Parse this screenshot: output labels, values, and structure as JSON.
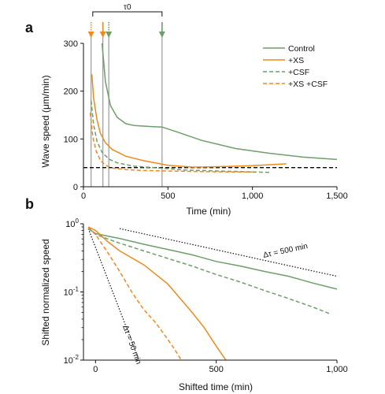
{
  "colors": {
    "control": "#6e9e6a",
    "xs": "#ee8a1e",
    "threshold": "#000000",
    "marker_line": "#9a9a9a"
  },
  "chart_data": [
    {
      "panel_label": "a",
      "type": "line",
      "xlabel": "Time (min)",
      "ylabel": "Wave speed (μm/min)",
      "xlim": [
        0,
        1500
      ],
      "ylim": [
        0,
        300
      ],
      "x_ticks": [
        0,
        500,
        1000,
        1500
      ],
      "x_tick_labels": [
        "0",
        "500",
        "1,000",
        "1,500"
      ],
      "y_ticks": [
        0,
        100,
        200,
        300
      ],
      "y_tick_labels": [
        "0",
        "100",
        "200",
        "300"
      ],
      "legend_position": "top-right",
      "threshold_y": 40,
      "tau_label": "τ0",
      "tau_range": [
        55,
        465
      ],
      "markers": [
        {
          "x": 45,
          "color": "xs",
          "style": "dotted"
        },
        {
          "x": 115,
          "color": "xs",
          "style": "solid"
        },
        {
          "x": 150,
          "color": "control",
          "style": "dotted"
        },
        {
          "x": 465,
          "color": "control",
          "style": "solid"
        }
      ],
      "series": [
        {
          "name": "Control",
          "color": "control",
          "dash": "solid",
          "x": [
            110,
            130,
            160,
            200,
            250,
            300,
            400,
            465,
            550,
            700,
            900,
            1100,
            1300,
            1500
          ],
          "y": [
            300,
            220,
            170,
            145,
            132,
            128,
            126,
            125,
            115,
            97,
            80,
            70,
            62,
            57
          ]
        },
        {
          "name": "+XS",
          "color": "xs",
          "dash": "solid",
          "x": [
            50,
            60,
            80,
            100,
            130,
            170,
            250,
            350,
            500,
            650,
            800,
            1000,
            1200
          ],
          "y": [
            235,
            185,
            140,
            112,
            92,
            78,
            64,
            55,
            45,
            41,
            42,
            44,
            48
          ]
        },
        {
          "name": "+CSF",
          "color": "control",
          "dash": "dashed",
          "x": [
            45,
            60,
            80,
            110,
            150,
            200,
            300,
            450,
            600,
            800,
            1000,
            1100
          ],
          "y": [
            180,
            130,
            95,
            72,
            58,
            50,
            43,
            39,
            35,
            33,
            31,
            30
          ]
        },
        {
          "name": "+XS +CSF",
          "color": "xs",
          "dash": "dashed",
          "x": [
            40,
            55,
            75,
            100,
            130,
            170,
            250,
            350,
            500,
            650,
            850,
            1000
          ],
          "y": [
            155,
            105,
            75,
            55,
            45,
            39,
            36,
            34,
            33,
            32,
            31,
            31
          ]
        }
      ]
    },
    {
      "panel_label": "b",
      "type": "line",
      "xlabel": "Shifted time (min)",
      "ylabel": "Shifted normalized speed",
      "xlim": [
        -50,
        1000
      ],
      "y_scale": "log",
      "ylim": [
        0.01,
        1
      ],
      "x_ticks": [
        0,
        500,
        1000
      ],
      "x_tick_labels": [
        "0",
        "500",
        "1,000"
      ],
      "y_ticks": [
        1,
        0.1,
        0.01
      ],
      "y_tick_labels": [
        "10^0",
        "10^-1",
        "10^-2"
      ],
      "reference_lines": [
        {
          "label": "Δτ = 500 min",
          "x": [
            100,
            1000
          ],
          "y": [
            0.85,
            0.17
          ]
        },
        {
          "label": "Δτ = 50 min",
          "x": [
            -30,
            180
          ],
          "y": [
            0.85,
            0.01
          ]
        }
      ],
      "series": [
        {
          "color": "control",
          "dash": "solid",
          "x": [
            -30,
            0,
            50,
            100,
            200,
            300,
            400,
            500,
            600,
            700,
            800,
            900,
            1000
          ],
          "y": [
            0.85,
            0.72,
            0.66,
            0.61,
            0.5,
            0.42,
            0.35,
            0.28,
            0.24,
            0.2,
            0.17,
            0.135,
            0.11
          ]
        },
        {
          "color": "control",
          "dash": "dashed",
          "x": [
            -30,
            0,
            50,
            100,
            200,
            300,
            400,
            500,
            600,
            700,
            800,
            900,
            970
          ],
          "y": [
            0.85,
            0.7,
            0.6,
            0.52,
            0.4,
            0.31,
            0.24,
            0.18,
            0.14,
            0.105,
            0.08,
            0.06,
            0.048
          ]
        },
        {
          "color": "xs",
          "dash": "solid",
          "x": [
            -30,
            0,
            50,
            100,
            200,
            300,
            400,
            450,
            500,
            540
          ],
          "y": [
            0.9,
            0.8,
            0.55,
            0.4,
            0.25,
            0.13,
            0.05,
            0.03,
            0.016,
            0.01
          ]
        },
        {
          "color": "xs",
          "dash": "dashed",
          "x": [
            -30,
            0,
            50,
            100,
            150,
            200,
            250,
            300,
            330,
            355
          ],
          "y": [
            0.9,
            0.7,
            0.38,
            0.2,
            0.1,
            0.055,
            0.035,
            0.02,
            0.014,
            0.01
          ]
        }
      ]
    }
  ]
}
